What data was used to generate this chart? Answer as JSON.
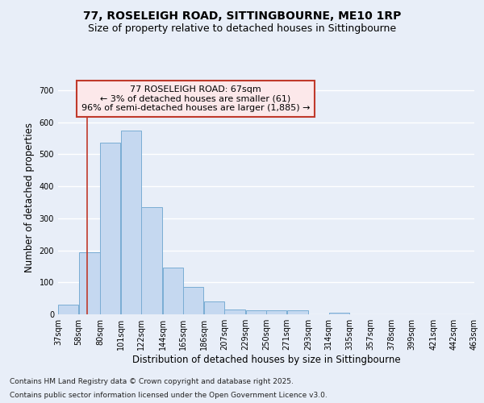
{
  "title_line1": "77, ROSELEIGH ROAD, SITTINGBOURNE, ME10 1RP",
  "title_line2": "Size of property relative to detached houses in Sittingbourne",
  "xlabel": "Distribution of detached houses by size in Sittingbourne",
  "ylabel": "Number of detached properties",
  "footer_line1": "Contains HM Land Registry data © Crown copyright and database right 2025.",
  "footer_line2": "Contains public sector information licensed under the Open Government Licence v3.0.",
  "annotation_line1": "77 ROSELEIGH ROAD: 67sqm",
  "annotation_line2": "← 3% of detached houses are smaller (61)",
  "annotation_line3": "96% of semi-detached houses are larger (1,885) →",
  "bar_left_edges": [
    37,
    58,
    80,
    101,
    122,
    144,
    165,
    186,
    207,
    229,
    250,
    271,
    293,
    314,
    335,
    357,
    378,
    399,
    421,
    442
  ],
  "bar_widths": [
    21,
    22,
    21,
    21,
    22,
    21,
    21,
    21,
    22,
    21,
    21,
    22,
    21,
    21,
    22,
    21,
    21,
    22,
    21,
    21
  ],
  "bar_heights": [
    30,
    193,
    535,
    575,
    335,
    147,
    85,
    40,
    15,
    12,
    12,
    12,
    0,
    5,
    0,
    0,
    0,
    0,
    0,
    0
  ],
  "bar_color": "#c5d8f0",
  "bar_edge_color": "#7aadd4",
  "vline_x": 67,
  "vline_color": "#c0392b",
  "ylim": [
    0,
    730
  ],
  "yticks": [
    0,
    100,
    200,
    300,
    400,
    500,
    600,
    700
  ],
  "tick_labels": [
    "37sqm",
    "58sqm",
    "80sqm",
    "101sqm",
    "122sqm",
    "144sqm",
    "165sqm",
    "186sqm",
    "207sqm",
    "229sqm",
    "250sqm",
    "271sqm",
    "293sqm",
    "314sqm",
    "335sqm",
    "357sqm",
    "378sqm",
    "399sqm",
    "421sqm",
    "442sqm",
    "463sqm"
  ],
  "bg_color": "#e8eef8",
  "plot_bg_color": "#e8eef8",
  "grid_color": "#ffffff",
  "annotation_box_color": "#fce8ea",
  "annotation_box_edge": "#c0392b",
  "title_fontsize": 10,
  "subtitle_fontsize": 9,
  "axis_label_fontsize": 8.5,
  "tick_fontsize": 7,
  "annotation_fontsize": 8,
  "footer_fontsize": 6.5
}
